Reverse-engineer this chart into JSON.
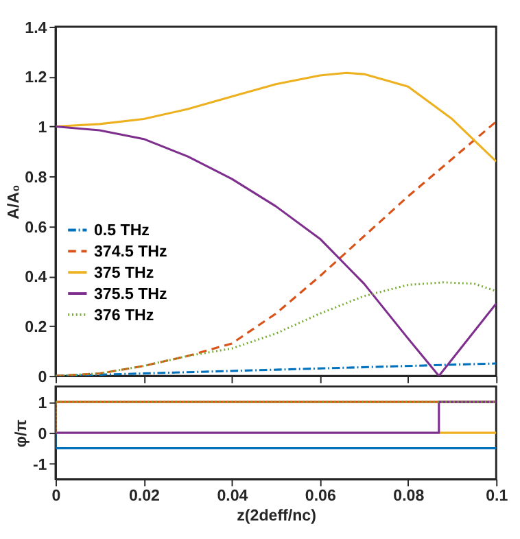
{
  "chart_data": [
    {
      "type": "line",
      "ylabel": "A/A₀",
      "xlim": [
        0,
        0.1
      ],
      "xticks": [
        0,
        0.02,
        0.04,
        0.06,
        0.08,
        0.1
      ],
      "ylim": [
        0,
        1.4
      ],
      "yticks": [
        0,
        0.2,
        0.4,
        0.6,
        0.8,
        1,
        1.2,
        1.4
      ],
      "tick_labels": "y",
      "grid": false,
      "legend": "left",
      "series": [
        {
          "name": "0.5 THz",
          "color": "#0072bd",
          "line_style": "dashdot",
          "x": [
            0,
            0.05,
            0.1
          ],
          "values": [
            0,
            0.025,
            0.05
          ]
        },
        {
          "name": "374.5 THz",
          "color": "#d95319",
          "line_style": "dashed",
          "x": [
            0,
            0.01,
            0.02,
            0.03,
            0.04,
            0.05,
            0.06,
            0.07,
            0.08,
            0.09,
            0.1
          ],
          "values": [
            0,
            0.01,
            0.04,
            0.08,
            0.13,
            0.25,
            0.4,
            0.56,
            0.72,
            0.87,
            1.02
          ]
        },
        {
          "name": "375 THz",
          "color": "#edb120",
          "line_style": "solid",
          "x": [
            0,
            0.01,
            0.02,
            0.03,
            0.04,
            0.05,
            0.06,
            0.066,
            0.07,
            0.08,
            0.09,
            0.1
          ],
          "values": [
            1,
            1.01,
            1.03,
            1.07,
            1.12,
            1.17,
            1.205,
            1.215,
            1.21,
            1.16,
            1.03,
            0.86
          ]
        },
        {
          "name": "375.5 THz",
          "color": "#7e2f8e",
          "line_style": "solid",
          "x": [
            0,
            0.01,
            0.02,
            0.03,
            0.04,
            0.05,
            0.06,
            0.07,
            0.08,
            0.087,
            0.1
          ],
          "values": [
            1,
            0.985,
            0.95,
            0.88,
            0.79,
            0.68,
            0.55,
            0.37,
            0.15,
            0,
            0.29
          ]
        },
        {
          "name": "376 THz",
          "color": "#77ac30",
          "line_style": "dotted",
          "x": [
            0,
            0.01,
            0.02,
            0.03,
            0.04,
            0.05,
            0.06,
            0.07,
            0.08,
            0.088,
            0.095,
            0.1
          ],
          "values": [
            0,
            0.01,
            0.04,
            0.08,
            0.11,
            0.17,
            0.25,
            0.32,
            0.365,
            0.375,
            0.37,
            0.34
          ]
        }
      ]
    },
    {
      "type": "line",
      "xlabel": "z(2deff/nc)",
      "ylabel": "φ/π",
      "xlim": [
        0,
        0.1
      ],
      "xticks": [
        0,
        0.02,
        0.04,
        0.06,
        0.08,
        0.1
      ],
      "ylim": [
        -1.5,
        1.5
      ],
      "yticks": [
        -1,
        0,
        1
      ],
      "grid": false,
      "legend": false,
      "series": [
        {
          "color": "#0072bd",
          "line_style": "solid",
          "x": [
            0,
            0,
            0.1
          ],
          "values": [
            0,
            -0.5,
            -0.5
          ]
        },
        {
          "color": "#d95319",
          "line_style": "solid",
          "x": [
            0,
            0,
            0.1
          ],
          "values": [
            0,
            1,
            1
          ]
        },
        {
          "color": "#edb120",
          "line_style": "solid",
          "x": [
            0.087,
            0.1
          ],
          "values": [
            0,
            0
          ]
        },
        {
          "color": "#7e2f8e",
          "line_style": "solid",
          "x": [
            0,
            0.087,
            0.087,
            0.1
          ],
          "values": [
            0,
            0,
            1,
            1
          ]
        },
        {
          "color": "#77ac30",
          "line_style": "dotted",
          "x": [
            0,
            0,
            0.1
          ],
          "values": [
            0,
            1,
            1
          ]
        }
      ]
    }
  ]
}
